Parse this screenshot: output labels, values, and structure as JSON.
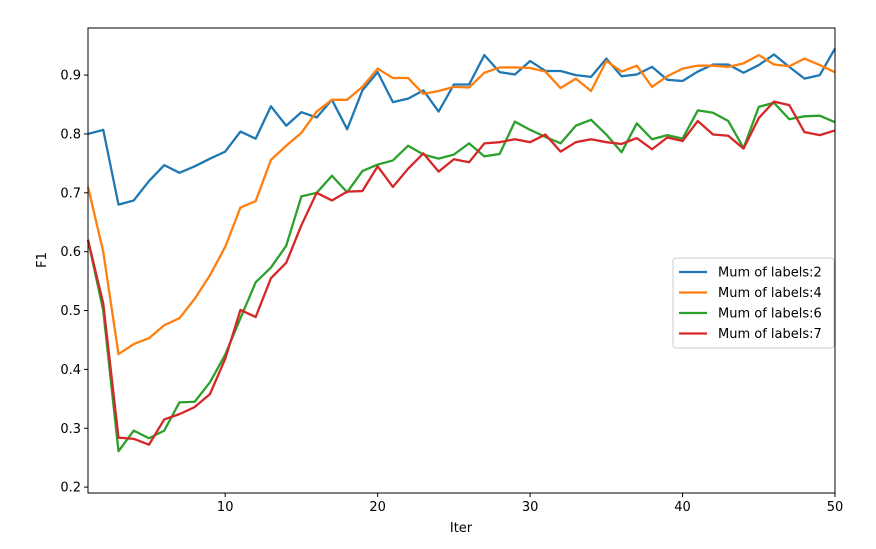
{
  "chart_data": {
    "type": "line",
    "xlabel": "Iter",
    "ylabel": "F1",
    "xlim": [
      1,
      50
    ],
    "ylim": [
      0.19,
      0.98
    ],
    "xticks": [
      10,
      20,
      30,
      40,
      50
    ],
    "yticks": [
      0.2,
      0.3,
      0.4,
      0.5,
      0.6,
      0.7,
      0.8,
      0.9
    ],
    "ytick_labels": [
      "0.2",
      "0.3",
      "0.4",
      "0.5",
      "0.6",
      "0.7",
      "0.8",
      "0.9"
    ],
    "grid": false,
    "legend_position": "center-right",
    "x": [
      1,
      2,
      3,
      4,
      5,
      6,
      7,
      8,
      9,
      10,
      11,
      12,
      13,
      14,
      15,
      16,
      17,
      18,
      19,
      20,
      21,
      22,
      23,
      24,
      25,
      26,
      27,
      28,
      29,
      30,
      31,
      32,
      33,
      34,
      35,
      36,
      37,
      38,
      39,
      40,
      41,
      42,
      43,
      44,
      45,
      46,
      47,
      48,
      49,
      50
    ],
    "series": [
      {
        "name": "Mum of labels:2",
        "color": "#1f77b4",
        "values": [
          0.8,
          0.807,
          0.68,
          0.687,
          0.72,
          0.747,
          0.734,
          0.745,
          0.758,
          0.77,
          0.804,
          0.792,
          0.847,
          0.814,
          0.837,
          0.828,
          0.858,
          0.808,
          0.874,
          0.905,
          0.854,
          0.86,
          0.874,
          0.838,
          0.884,
          0.884,
          0.934,
          0.905,
          0.901,
          0.924,
          0.907,
          0.907,
          0.9,
          0.897,
          0.928,
          0.898,
          0.901,
          0.914,
          0.892,
          0.89,
          0.906,
          0.918,
          0.918,
          0.904,
          0.917,
          0.935,
          0.914,
          0.894,
          0.9,
          0.945
        ]
      },
      {
        "name": "Mum of labels:4",
        "color": "#ff7f0e",
        "values": [
          0.71,
          0.6,
          0.426,
          0.443,
          0.453,
          0.475,
          0.487,
          0.52,
          0.56,
          0.608,
          0.675,
          0.686,
          0.756,
          0.78,
          0.802,
          0.838,
          0.858,
          0.858,
          0.88,
          0.911,
          0.895,
          0.895,
          0.868,
          0.873,
          0.88,
          0.879,
          0.904,
          0.913,
          0.913,
          0.912,
          0.906,
          0.878,
          0.894,
          0.873,
          0.924,
          0.906,
          0.916,
          0.88,
          0.898,
          0.911,
          0.916,
          0.916,
          0.914,
          0.92,
          0.934,
          0.918,
          0.915,
          0.928,
          0.917,
          0.905
        ]
      },
      {
        "name": "Mum of labels:6",
        "color": "#2ca02c",
        "values": [
          0.62,
          0.5,
          0.261,
          0.296,
          0.283,
          0.296,
          0.344,
          0.345,
          0.378,
          0.425,
          0.487,
          0.548,
          0.573,
          0.61,
          0.694,
          0.7,
          0.729,
          0.701,
          0.737,
          0.748,
          0.755,
          0.78,
          0.765,
          0.758,
          0.765,
          0.784,
          0.762,
          0.766,
          0.821,
          0.807,
          0.795,
          0.784,
          0.814,
          0.824,
          0.799,
          0.769,
          0.818,
          0.791,
          0.798,
          0.792,
          0.84,
          0.836,
          0.822,
          0.776,
          0.846,
          0.853,
          0.825,
          0.83,
          0.831,
          0.82
        ]
      },
      {
        "name": "Mum of labels:7",
        "color": "#d62728",
        "values": [
          0.62,
          0.512,
          0.284,
          0.282,
          0.272,
          0.315,
          0.324,
          0.336,
          0.358,
          0.418,
          0.501,
          0.489,
          0.555,
          0.581,
          0.645,
          0.7,
          0.687,
          0.702,
          0.703,
          0.745,
          0.71,
          0.741,
          0.767,
          0.736,
          0.757,
          0.752,
          0.784,
          0.786,
          0.791,
          0.786,
          0.799,
          0.77,
          0.786,
          0.791,
          0.786,
          0.783,
          0.793,
          0.774,
          0.794,
          0.788,
          0.822,
          0.799,
          0.797,
          0.775,
          0.827,
          0.855,
          0.849,
          0.803,
          0.798,
          0.806
        ]
      }
    ]
  }
}
